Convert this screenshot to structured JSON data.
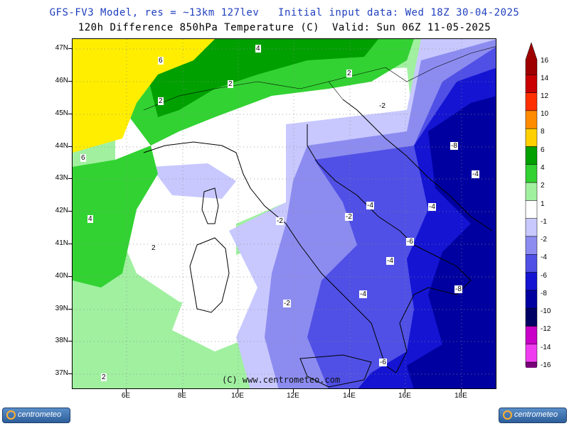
{
  "header": {
    "line1": "GFS-FV3 Model, res = ~13km 127lev   Initial input data: Wed 18Z 30-04-2025",
    "line2": "120h Difference 850hPa Temperature (C)  Valid: Sun 06Z 11-05-2025"
  },
  "axes": {
    "lat_labels": [
      "47N",
      "46N",
      "45N",
      "44N",
      "43N",
      "42N",
      "41N",
      "40N",
      "39N",
      "38N",
      "37N"
    ],
    "lon_labels": [
      "6E",
      "8E",
      "10E",
      "12E",
      "14E",
      "16E",
      "18E"
    ]
  },
  "contour_labels": [
    "6",
    "4",
    "2",
    "2",
    "2",
    "-2",
    "-8",
    "-4",
    "6",
    "4",
    "2",
    "-2",
    "-2",
    "-4",
    "-4",
    "-6",
    "-4",
    "-4",
    "-8",
    "-2",
    "-6",
    "2"
  ],
  "legend": {
    "labels": [
      "16",
      "14",
      "12",
      "10",
      "8",
      "6",
      "4",
      "2",
      "1",
      "-1",
      "-2",
      "-4",
      "-6",
      "-8",
      "-10",
      "-12",
      "-14",
      "-16"
    ],
    "colors": [
      "#9e0000",
      "#c80000",
      "#ff3000",
      "#ff8c00",
      "#ffd000",
      "#00a000",
      "#32d232",
      "#a0f0a0",
      "#ffffff",
      "#c8c8ff",
      "#8c8cf0",
      "#5050e6",
      "#1414d2",
      "#0000a0",
      "#000064",
      "#c800c8",
      "#f03cf0",
      "#780078"
    ]
  },
  "map_colors": {
    "yellow": "#ffee00",
    "dark_green": "#00a000",
    "mid_green": "#32d232",
    "light_green": "#a0f0a0",
    "white": "#ffffff",
    "very_light_blue": "#c8c8ff",
    "light_blue": "#8c8cf0",
    "mid_blue": "#5050e6",
    "blue": "#1414d2",
    "dark_blue": "#0000a0"
  },
  "copyright": "(C) www.centrometeo.com",
  "logos": {
    "left": "centrometeo",
    "right": "centrometeo"
  }
}
